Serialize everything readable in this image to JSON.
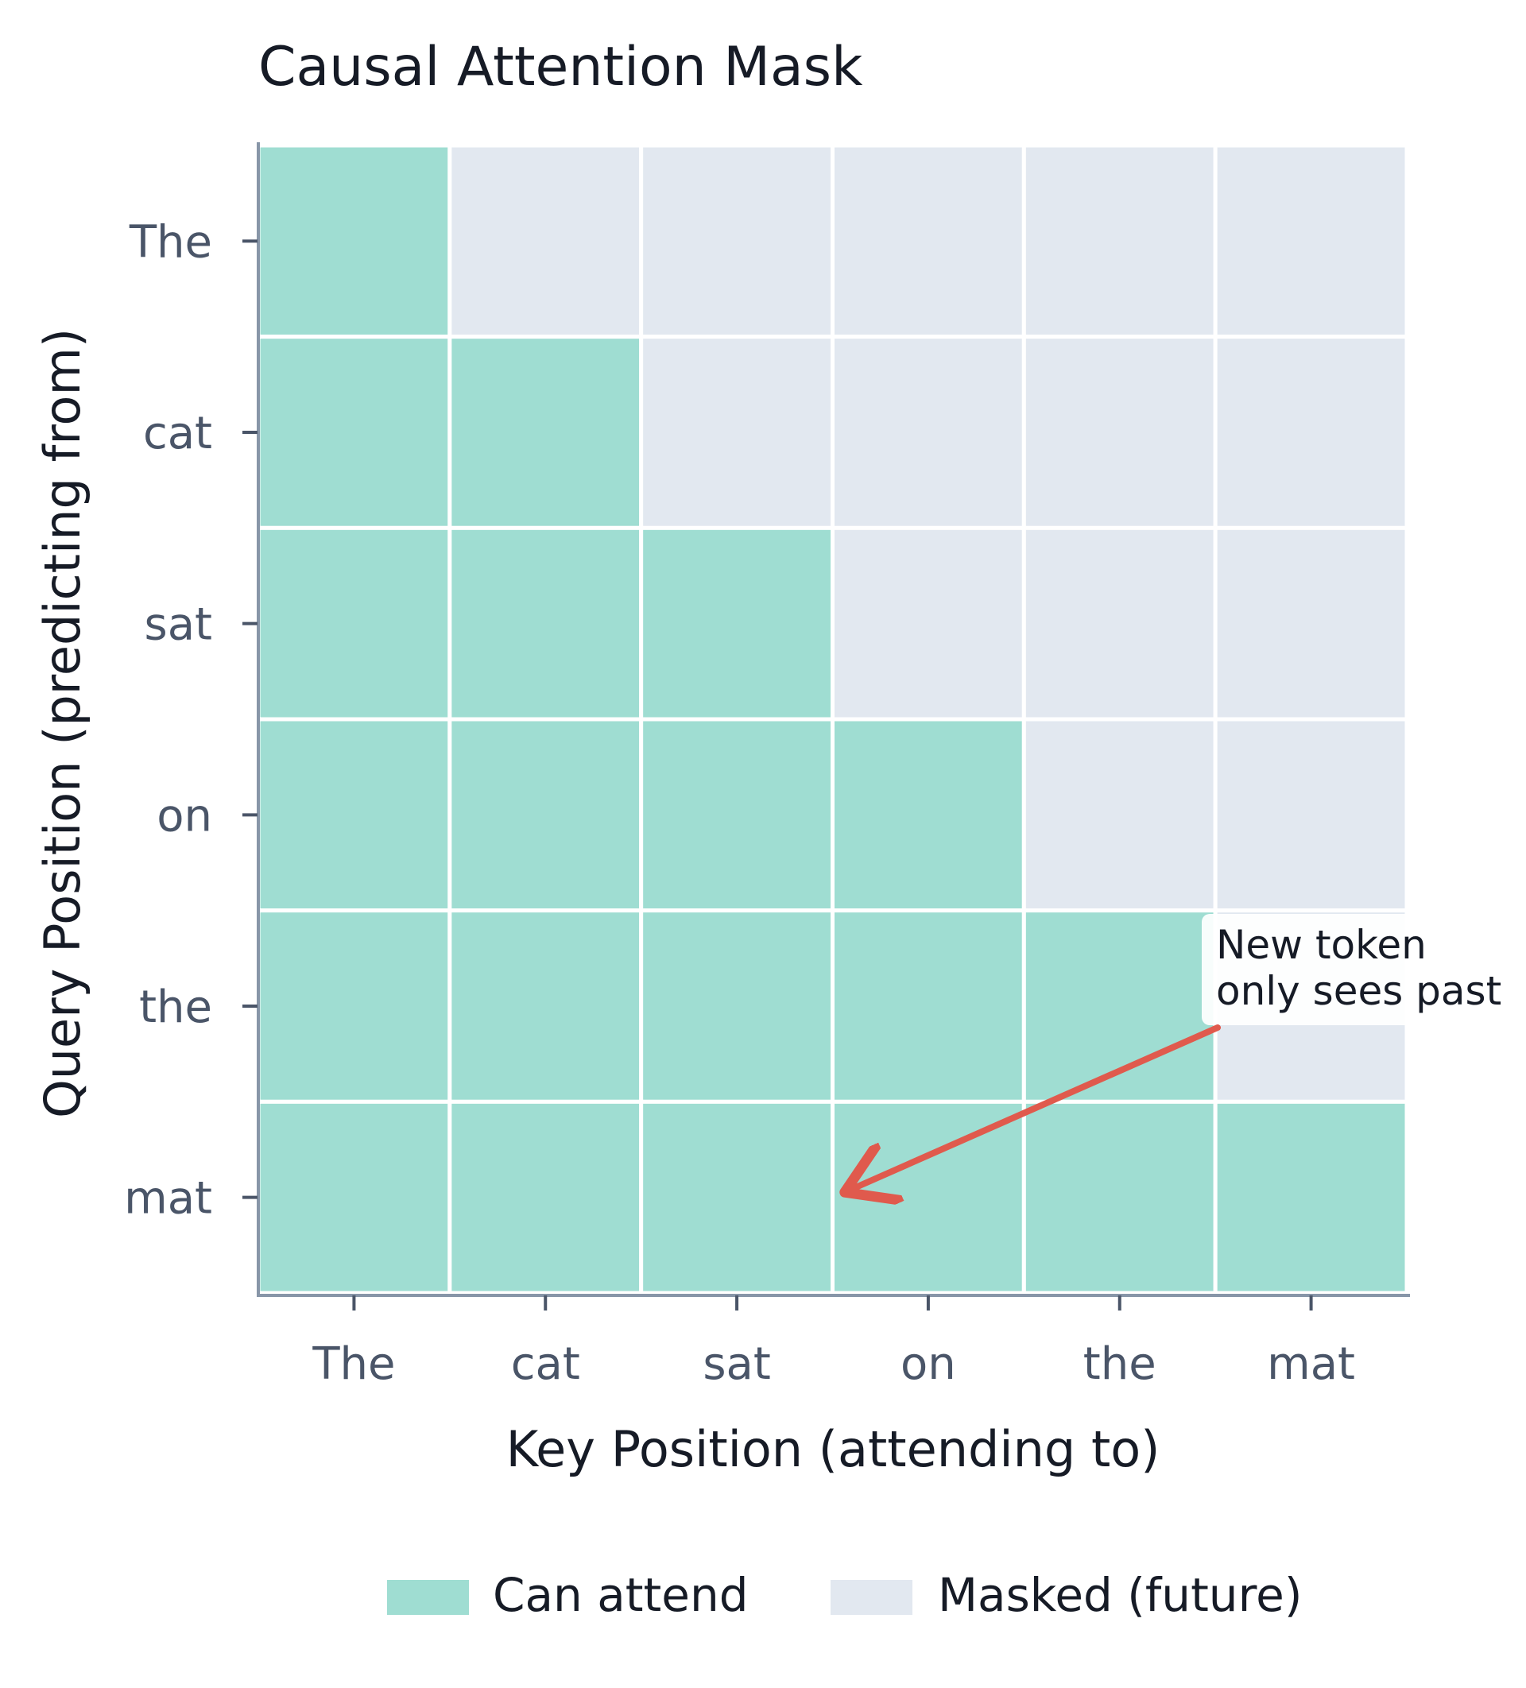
{
  "chart_data": {
    "type": "heatmap",
    "title": "Causal Attention Mask",
    "xlabel": "Key Position (attending to)",
    "ylabel": "Query Position (predicting from)",
    "x_categories": [
      "The",
      "cat",
      "sat",
      "on",
      "the",
      "mat"
    ],
    "y_categories": [
      "The",
      "cat",
      "sat",
      "on",
      "the",
      "mat"
    ],
    "values": [
      [
        1,
        0,
        0,
        0,
        0,
        0
      ],
      [
        1,
        1,
        0,
        0,
        0,
        0
      ],
      [
        1,
        1,
        1,
        0,
        0,
        0
      ],
      [
        1,
        1,
        1,
        1,
        0,
        0
      ],
      [
        1,
        1,
        1,
        1,
        1,
        0
      ],
      [
        1,
        1,
        1,
        1,
        1,
        1
      ]
    ],
    "colors": {
      "can_attend": "#9fddd2",
      "masked": "#e2e8f0",
      "arrow": "#e05a4d",
      "axis": "#8896a8"
    },
    "legend": {
      "position": "bottom",
      "items": [
        {
          "label": "Can attend",
          "value": 1
        },
        {
          "label": "Masked (future)",
          "value": 0
        }
      ]
    },
    "annotation": {
      "text_lines": [
        "New token",
        "only sees past"
      ],
      "from_cell": {
        "row": "the",
        "col": "mat"
      },
      "to_cell": {
        "row": "mat",
        "col": "on"
      }
    },
    "grid": false
  }
}
